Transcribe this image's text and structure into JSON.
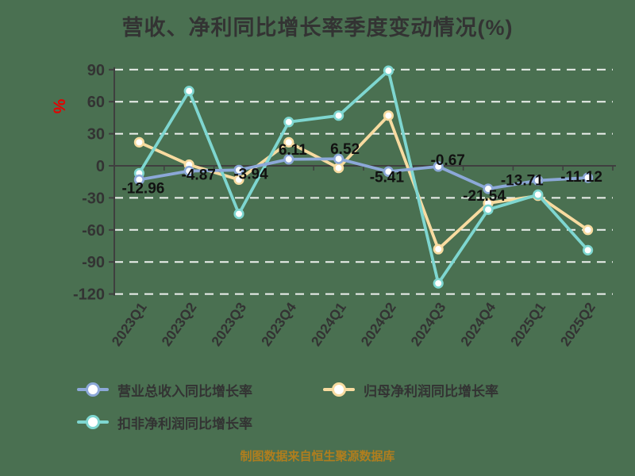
{
  "page": {
    "background_color": "#4A7051"
  },
  "title": {
    "text": "营收、净利同比增长率季度变动情况(%)",
    "color": "#333333"
  },
  "y_axis": {
    "unit_label": "%",
    "unit_color": "#E60000",
    "tick_label_color": "#333333",
    "axis_line_color": "#3F3F3F",
    "gridline_color": "#FFFFFF"
  },
  "x_axis": {
    "label_color": "#333333",
    "label_rotation_deg": -55
  },
  "legend": {
    "items": [
      {
        "key": "revenue-yoy",
        "label": "营业总收入同比增长率",
        "color": "#8CA8D8"
      },
      {
        "key": "net-profit-yoy",
        "label": "归母净利润同比增长率",
        "color": "#F8DBA0"
      },
      {
        "key": "non-gaap-net-profit-yoy",
        "label": "扣非净利润同比增长率",
        "color": "#7ED6D0"
      }
    ]
  },
  "footer": {
    "text": "制图数据来自恒生聚源数据库",
    "color": "#B07E1E"
  },
  "chart_data": {
    "type": "line",
    "title": "营收、净利同比增长率季度变动情况(%)",
    "ylabel": "%",
    "categories": [
      "2023Q1",
      "2023Q2",
      "2023Q3",
      "2023Q4",
      "2024Q1",
      "2024Q2",
      "2024Q3",
      "2024Q4",
      "2025Q1",
      "2025Q2"
    ],
    "series": [
      {
        "key": "revenue-yoy",
        "name": "营业总收入同比增长率",
        "color": "#8CA8D8",
        "labels_shown": true,
        "values": [
          -12.96,
          -4.87,
          -3.94,
          6.11,
          6.52,
          -5.41,
          -0.67,
          -21.54,
          -13.71,
          -11.12
        ]
      },
      {
        "key": "net-profit-yoy",
        "name": "归母净利润同比增长率",
        "color": "#F8DBA0",
        "labels_shown": false,
        "values": [
          22,
          1,
          -13,
          22,
          -2,
          47,
          -78,
          -35,
          -28,
          -60
        ]
      },
      {
        "key": "non-gaap-net-profit-yoy",
        "name": "扣非净利润同比增长率",
        "color": "#7ED6D0",
        "labels_shown": false,
        "values": [
          -7,
          70,
          -45,
          41,
          47,
          89,
          -110,
          -41,
          -27,
          -79
        ]
      }
    ],
    "ylim": [
      -120,
      90
    ],
    "yticks": [
      90,
      60,
      30,
      0,
      -30,
      -60,
      -90,
      -120
    ],
    "grid": true,
    "gridline_style": "dashed-white",
    "marker": "open-circle",
    "legend_position": "bottom-left"
  }
}
